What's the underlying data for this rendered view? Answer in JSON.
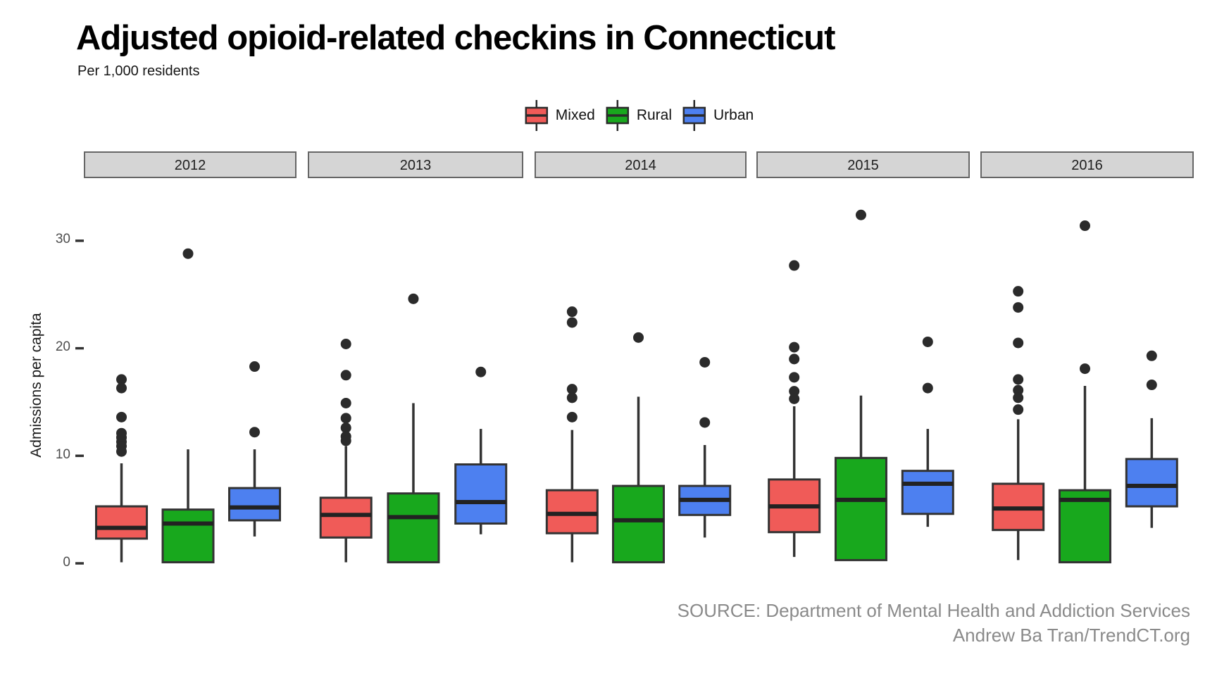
{
  "chart_data": {
    "type": "boxplot",
    "title": "Adjusted opioid-related checkins in Connecticut",
    "subtitle": "Per 1,000 residents",
    "ylabel": "Admissions per capita",
    "xlabel": "",
    "yticks": [
      0,
      10,
      20,
      30
    ],
    "ylim": [
      0,
      33
    ],
    "grid": "off",
    "legend_position": "top-center",
    "facets": [
      "2012",
      "2013",
      "2014",
      "2015",
      "2016"
    ],
    "series": [
      {
        "name": "Mixed",
        "color": "#F05B58"
      },
      {
        "name": "Rural",
        "color": "#18A81D"
      },
      {
        "name": "Urban",
        "color": "#4D80F0"
      }
    ],
    "style": {
      "box_stroke": "#333333",
      "median_stroke": "#222222",
      "outlier_color": "#2b2b2b",
      "strip_fill": "#d5d5d5",
      "strip_stroke": "#666666",
      "tick_color": "#333333"
    },
    "boxes": [
      {
        "facet": "2012",
        "group": "Mixed",
        "low": 0.1,
        "q1": 2.3,
        "median": 3.3,
        "q3": 5.3,
        "high": 9.3,
        "outliers": [
          17.1,
          16.3,
          13.6,
          12.1,
          11.7,
          11.3,
          10.9,
          10.4
        ]
      },
      {
        "facet": "2012",
        "group": "Rural",
        "low": 0.1,
        "q1": 0.1,
        "median": 3.7,
        "q3": 5.0,
        "high": 10.6,
        "outliers": [
          28.8
        ]
      },
      {
        "facet": "2012",
        "group": "Urban",
        "low": 2.5,
        "q1": 4.0,
        "median": 5.2,
        "q3": 7.0,
        "high": 10.6,
        "outliers": [
          18.3,
          12.2
        ]
      },
      {
        "facet": "2013",
        "group": "Mixed",
        "low": 0.1,
        "q1": 2.4,
        "median": 4.5,
        "q3": 6.1,
        "high": 10.9,
        "outliers": [
          20.4,
          17.5,
          14.9,
          13.5,
          12.6,
          11.8,
          11.4
        ]
      },
      {
        "facet": "2013",
        "group": "Rural",
        "low": 0.1,
        "q1": 0.1,
        "median": 4.3,
        "q3": 6.5,
        "high": 14.9,
        "outliers": [
          24.6
        ]
      },
      {
        "facet": "2013",
        "group": "Urban",
        "low": 2.7,
        "q1": 3.7,
        "median": 5.7,
        "q3": 9.2,
        "high": 12.5,
        "outliers": [
          17.8
        ]
      },
      {
        "facet": "2014",
        "group": "Mixed",
        "low": 0.1,
        "q1": 2.8,
        "median": 4.6,
        "q3": 6.8,
        "high": 12.4,
        "outliers": [
          23.4,
          22.4,
          16.2,
          15.4,
          13.6
        ]
      },
      {
        "facet": "2014",
        "group": "Rural",
        "low": 0.1,
        "q1": 0.1,
        "median": 4.0,
        "q3": 7.2,
        "high": 15.5,
        "outliers": [
          21.0
        ]
      },
      {
        "facet": "2014",
        "group": "Urban",
        "low": 2.4,
        "q1": 4.5,
        "median": 5.9,
        "q3": 7.2,
        "high": 11.0,
        "outliers": [
          18.7,
          13.1
        ]
      },
      {
        "facet": "2015",
        "group": "Mixed",
        "low": 0.6,
        "q1": 2.9,
        "median": 5.3,
        "q3": 7.8,
        "high": 14.6,
        "outliers": [
          27.7,
          20.1,
          19.0,
          17.3,
          16.0,
          15.3
        ]
      },
      {
        "facet": "2015",
        "group": "Rural",
        "low": 0.3,
        "q1": 0.3,
        "median": 5.9,
        "q3": 9.8,
        "high": 15.6,
        "outliers": [
          32.4
        ]
      },
      {
        "facet": "2015",
        "group": "Urban",
        "low": 3.4,
        "q1": 4.6,
        "median": 7.4,
        "q3": 8.6,
        "high": 12.5,
        "outliers": [
          20.6,
          16.3
        ]
      },
      {
        "facet": "2016",
        "group": "Mixed",
        "low": 0.3,
        "q1": 3.1,
        "median": 5.1,
        "q3": 7.4,
        "high": 13.4,
        "outliers": [
          25.3,
          23.8,
          20.5,
          17.1,
          16.1,
          15.4,
          14.3
        ]
      },
      {
        "facet": "2016",
        "group": "Rural",
        "low": 0.1,
        "q1": 0.1,
        "median": 5.9,
        "q3": 6.8,
        "high": 16.5,
        "outliers": [
          31.4,
          18.1
        ]
      },
      {
        "facet": "2016",
        "group": "Urban",
        "low": 3.3,
        "q1": 5.3,
        "median": 7.2,
        "q3": 9.7,
        "high": 13.5,
        "outliers": [
          19.3,
          16.6
        ]
      }
    ]
  },
  "source": {
    "line1": "SOURCE: Department of Mental Health and Addiction Services",
    "line2": "Andrew Ba Tran/TrendCT.org"
  }
}
